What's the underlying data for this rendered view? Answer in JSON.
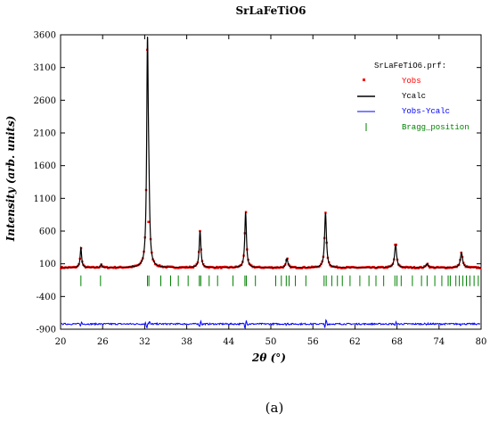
{
  "chart_data": {
    "type": "line",
    "title": "SrLaFeTiO6",
    "xlabel": "2θ (°)",
    "ylabel": "Intensity (arb. units)",
    "xlim": [
      20,
      80
    ],
    "ylim": [
      -900,
      3600
    ],
    "xticks": [
      20,
      26,
      32,
      38,
      44,
      50,
      56,
      62,
      68,
      74,
      80
    ],
    "yticks": [
      3600,
      3100,
      2600,
      2100,
      1600,
      1100,
      600,
      100,
      -400,
      -900
    ],
    "legend": {
      "position": "top-right",
      "header": "SrLaFeTiO6.prf:",
      "entries": [
        {
          "name": "Yobs",
          "color": "#ff0000",
          "marker": "dot"
        },
        {
          "name": "Ycalc",
          "color": "#000000",
          "marker": "line"
        },
        {
          "name": "Yobs-Ycalc",
          "color": "#0000ff",
          "marker": "line"
        },
        {
          "name": "Bragg_position",
          "color": "#008000",
          "marker": "tick"
        }
      ]
    },
    "baseline": 40,
    "peaks": [
      {
        "x": 22.9,
        "height": 300,
        "width": 0.16
      },
      {
        "x": 25.8,
        "height": 50,
        "width": 0.16
      },
      {
        "x": 32.4,
        "height": 3330,
        "width": 0.17
      },
      {
        "x": 32.6,
        "height": 700,
        "width": 0.17
      },
      {
        "x": 39.9,
        "height": 560,
        "width": 0.18
      },
      {
        "x": 46.4,
        "height": 850,
        "width": 0.18
      },
      {
        "x": 52.3,
        "height": 140,
        "width": 0.2
      },
      {
        "x": 57.8,
        "height": 840,
        "width": 0.2
      },
      {
        "x": 67.8,
        "height": 350,
        "width": 0.22
      },
      {
        "x": 72.3,
        "height": 60,
        "width": 0.22
      },
      {
        "x": 77.2,
        "height": 230,
        "width": 0.24
      }
    ],
    "difference_offset": -820,
    "bragg_row_y": -160,
    "bragg_positions": [
      22.9,
      25.7,
      32.4,
      32.6,
      34.3,
      35.7,
      36.8,
      38.2,
      39.8,
      40.0,
      41.2,
      42.4,
      44.6,
      46.3,
      46.5,
      47.8,
      50.7,
      51.5,
      52.2,
      52.6,
      53.5,
      55.0,
      57.6,
      57.9,
      58.7,
      59.5,
      60.2,
      61.3,
      62.7,
      64.0,
      65.0,
      66.1,
      67.7,
      68.0,
      68.6,
      70.2,
      71.5,
      72.3,
      73.4,
      74.4,
      75.3,
      75.6,
      76.4,
      76.9,
      77.4,
      77.9,
      78.4,
      79.0,
      79.6
    ]
  },
  "caption": "(a)",
  "colors": {
    "observed": "#ff0000",
    "calculated": "#000000",
    "difference": "#0000ff",
    "bragg": "#008000",
    "legend_text_red": "#ff0000",
    "legend_text_black": "#000000",
    "legend_text_blue": "#0000ff",
    "legend_text_green": "#008000"
  }
}
